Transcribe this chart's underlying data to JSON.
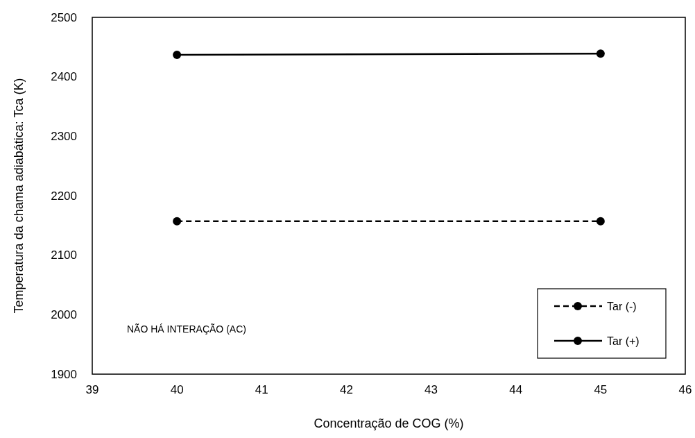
{
  "chart_data": {
    "type": "line",
    "xlabel": "Concentração de COG (%)",
    "ylabel": "Temperatura da chama adiabática: Tca (K)",
    "x": [
      40,
      45
    ],
    "xlim": [
      39,
      46
    ],
    "xticks": [
      39,
      40,
      41,
      42,
      43,
      44,
      45,
      46
    ],
    "ylim": [
      1900,
      2500
    ],
    "yticks": [
      1900,
      2000,
      2100,
      2200,
      2300,
      2400,
      2500
    ],
    "grid": false,
    "legend": "bottom right",
    "marker": "circle",
    "annotations": [
      "NÃO HÁ INTERAÇÃO (AC)"
    ],
    "series": [
      {
        "name": "Tar (-)",
        "color": "#000000",
        "values": [
          2157,
          2157
        ],
        "line_style": "dashed"
      },
      {
        "name": "Tar (+)",
        "color": "#000000",
        "values": [
          2437,
          2439
        ],
        "line_style": "solid"
      }
    ]
  }
}
